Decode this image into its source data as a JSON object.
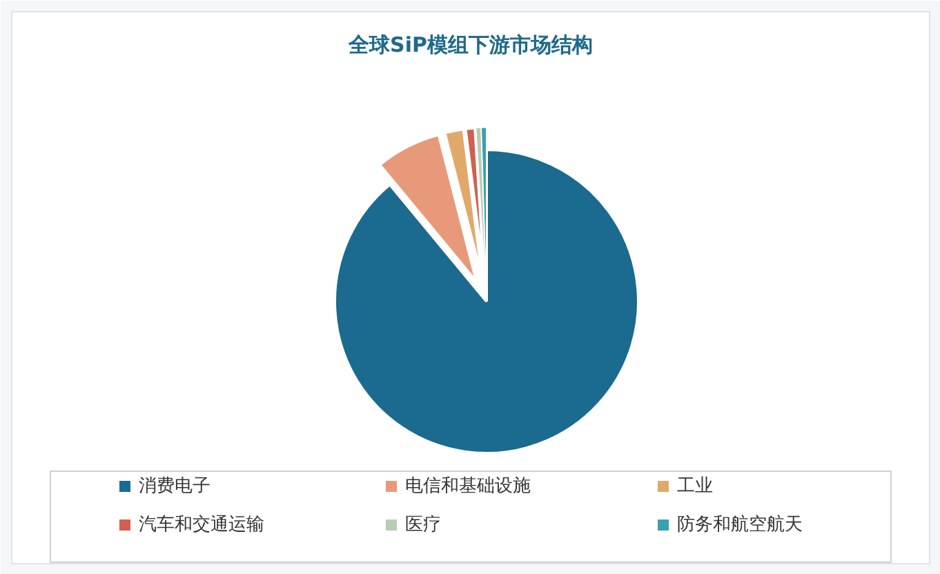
{
  "chart_data": {
    "type": "pie",
    "title": "全球SiP模组下游市场结构",
    "categories": [
      "消费电子",
      "电信和基础设施",
      "工业",
      "汽车和交通运输",
      "医疗",
      "防务和航空航天"
    ],
    "values": [
      89,
      7,
      2,
      1,
      0.5,
      0.5
    ],
    "colors": [
      "#1b6a8f",
      "#e8997a",
      "#e0a96b",
      "#d0604f",
      "#b7cdb4",
      "#3a9fb0"
    ],
    "legend": "bottom"
  }
}
